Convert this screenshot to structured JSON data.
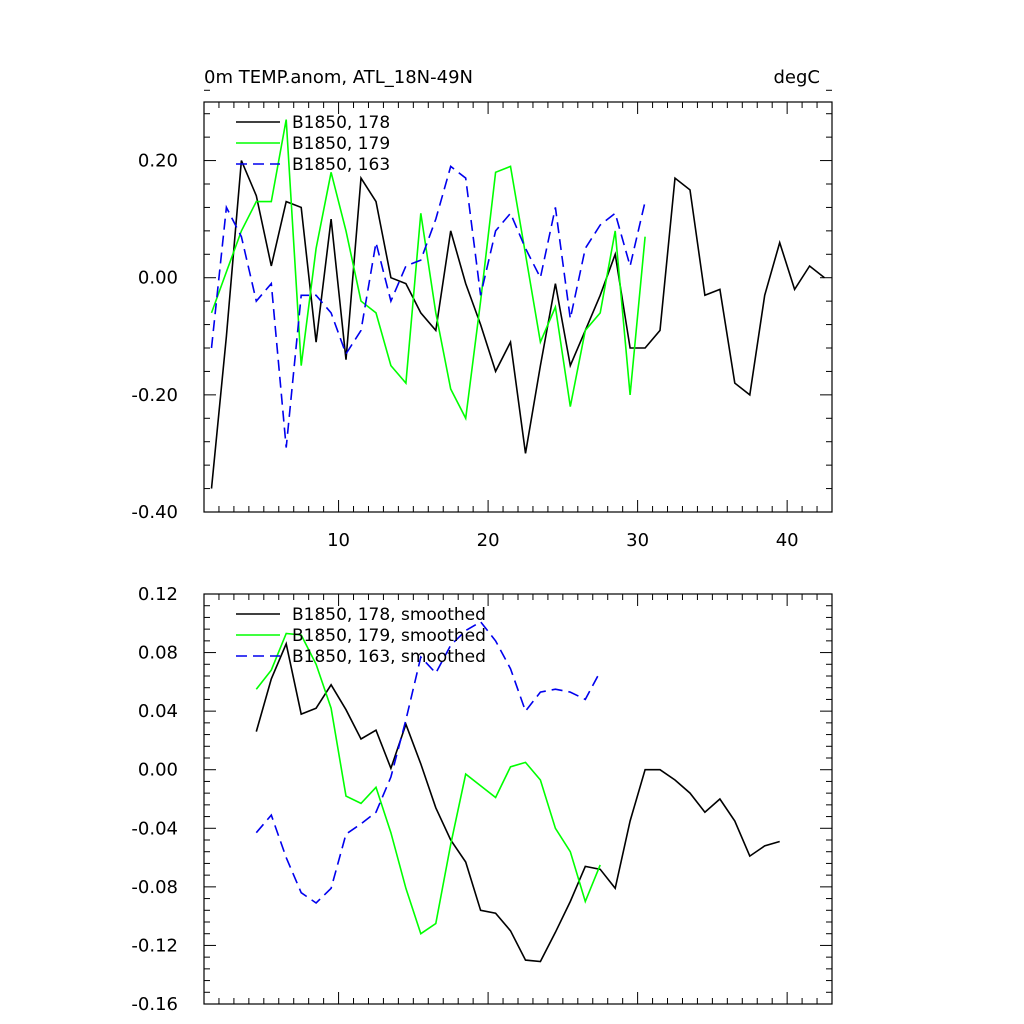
{
  "chart_data": [
    {
      "type": "line",
      "title": "0m TEMP.anom, ATL_18N-49N",
      "title_right": "degC",
      "xlabel": "",
      "ylabel": "",
      "xlim": [
        1,
        43
      ],
      "ylim": [
        -0.4,
        0.3
      ],
      "xticks": [
        10,
        20,
        30,
        40
      ],
      "xtick_labels": [
        "10",
        "20",
        "30",
        "40"
      ],
      "yticks": [
        -0.4,
        -0.2,
        0.0,
        0.2
      ],
      "ytick_labels": [
        "-0.40",
        "-0.20",
        "0.00",
        "0.20"
      ],
      "grid": false,
      "legend_placement": "top-left",
      "series": [
        {
          "name": "B1850, 178",
          "color": "#000000",
          "dash": "solid",
          "x": [
            1.5,
            2.5,
            3.5,
            4.5,
            5.5,
            6.5,
            7.5,
            8.5,
            9.5,
            10.5,
            11.5,
            12.5,
            13.5,
            14.5,
            15.5,
            16.5,
            17.5,
            18.5,
            19.5,
            20.5,
            21.5,
            22.5,
            23.5,
            24.5,
            25.5,
            26.5,
            27.5,
            28.5,
            29.5,
            30.5,
            31.5,
            32.5,
            33.5,
            34.5,
            35.5,
            36.5,
            37.5,
            38.5,
            39.5,
            40.5,
            41.5,
            42.5
          ],
          "values": [
            -0.36,
            -0.1,
            0.2,
            0.14,
            0.02,
            0.13,
            0.12,
            -0.11,
            0.1,
            -0.14,
            0.17,
            0.13,
            0.0,
            -0.01,
            -0.06,
            -0.09,
            0.08,
            -0.01,
            -0.08,
            -0.16,
            -0.11,
            -0.3,
            -0.15,
            -0.01,
            -0.15,
            -0.09,
            -0.03,
            0.04,
            -0.12,
            -0.12,
            -0.09,
            0.17,
            0.15,
            -0.03,
            -0.02,
            -0.18,
            -0.2,
            -0.03,
            0.06,
            -0.02,
            0.02,
            0.0
          ]
        },
        {
          "name": "B1850, 179",
          "color": "#00ff00",
          "dash": "solid",
          "x": [
            1.5,
            2.5,
            3.5,
            4.5,
            5.5,
            6.5,
            7.5,
            8.5,
            9.5,
            10.5,
            11.5,
            12.5,
            13.5,
            14.5,
            15.5,
            16.5,
            17.5,
            18.5,
            19.5,
            20.5,
            21.5,
            22.5,
            23.5,
            24.5,
            25.5,
            26.5,
            27.5,
            28.5,
            29.5,
            30.5
          ],
          "values": [
            -0.06,
            0.01,
            0.08,
            0.13,
            0.13,
            0.27,
            -0.15,
            0.05,
            0.18,
            0.08,
            -0.04,
            -0.06,
            -0.15,
            -0.18,
            0.11,
            -0.06,
            -0.19,
            -0.24,
            -0.04,
            0.18,
            0.19,
            0.04,
            -0.11,
            -0.05,
            -0.22,
            -0.09,
            -0.06,
            0.08,
            -0.2,
            0.07
          ]
        },
        {
          "name": "B1850, 163",
          "color": "#0000ee",
          "dash": "dashed",
          "x": [
            1.5,
            2.5,
            3.5,
            4.5,
            5.5,
            6.5,
            7.5,
            8.5,
            9.5,
            10.5,
            11.5,
            12.5,
            13.5,
            14.5,
            15.5,
            16.5,
            17.5,
            18.5,
            19.5,
            20.5,
            21.5,
            22.5,
            23.5,
            24.5,
            25.5,
            26.5,
            27.5,
            28.5,
            29.5,
            30.5
          ],
          "values": [
            -0.12,
            0.12,
            0.07,
            -0.04,
            -0.01,
            -0.29,
            -0.03,
            -0.03,
            -0.06,
            -0.13,
            -0.09,
            0.06,
            -0.04,
            0.02,
            0.03,
            0.1,
            0.19,
            0.17,
            -0.03,
            0.08,
            0.11,
            0.05,
            0.0,
            0.12,
            -0.07,
            0.05,
            0.09,
            0.11,
            0.02,
            0.13
          ]
        }
      ]
    },
    {
      "type": "line",
      "title": "",
      "xlabel": "",
      "ylabel": "",
      "xlim": [
        1,
        43
      ],
      "ylim": [
        -0.16,
        0.12
      ],
      "xticks": [
        10,
        20,
        30,
        40
      ],
      "xtick_labels": [],
      "yticks": [
        -0.16,
        -0.12,
        -0.08,
        -0.04,
        0.0,
        0.04,
        0.08,
        0.12
      ],
      "ytick_labels": [
        "-0.16",
        "-0.12",
        "-0.08",
        "-0.04",
        "0.00",
        "0.04",
        "0.08",
        "0.12"
      ],
      "grid": false,
      "legend_placement": "top-left",
      "series": [
        {
          "name": "B1850, 178, smoothed",
          "color": "#000000",
          "dash": "solid",
          "x": [
            4.5,
            5.5,
            6.5,
            7.5,
            8.5,
            9.5,
            10.5,
            11.5,
            12.5,
            13.5,
            14.5,
            15.5,
            16.5,
            17.5,
            18.5,
            19.5,
            20.5,
            21.5,
            22.5,
            23.5,
            24.5,
            25.5,
            26.5,
            27.5,
            28.5,
            29.5,
            30.5,
            31.5,
            32.5,
            33.5,
            34.5,
            35.5,
            36.5,
            37.5,
            38.5,
            39.5
          ],
          "values": [
            0.026,
            0.062,
            0.086,
            0.038,
            0.042,
            0.058,
            0.041,
            0.021,
            0.027,
            0.001,
            0.031,
            0.004,
            -0.026,
            -0.048,
            -0.063,
            -0.096,
            -0.098,
            -0.11,
            -0.13,
            -0.131,
            -0.111,
            -0.09,
            -0.066,
            -0.068,
            -0.081,
            -0.035,
            0.0,
            0.0,
            -0.007,
            -0.016,
            -0.029,
            -0.02,
            -0.035,
            -0.059,
            -0.052,
            -0.049
          ]
        },
        {
          "name": "B1850, 179, smoothed",
          "color": "#00ff00",
          "dash": "solid",
          "x": [
            4.5,
            5.5,
            6.5,
            7.5,
            8.5,
            9.5,
            10.5,
            11.5,
            12.5,
            13.5,
            14.5,
            15.5,
            16.5,
            17.5,
            18.5,
            19.5,
            20.5,
            21.5,
            22.5,
            23.5,
            24.5,
            25.5,
            26.5,
            27.5
          ],
          "values": [
            0.055,
            0.068,
            0.093,
            0.092,
            0.072,
            0.042,
            -0.018,
            -0.023,
            -0.012,
            -0.043,
            -0.081,
            -0.112,
            -0.105,
            -0.051,
            -0.003,
            -0.011,
            -0.019,
            0.002,
            0.005,
            -0.007,
            -0.04,
            -0.056,
            -0.09,
            -0.065
          ]
        },
        {
          "name": "B1850, 163, smoothed",
          "color": "#0000ee",
          "dash": "dashed",
          "x": [
            4.5,
            5.5,
            6.5,
            7.5,
            8.5,
            9.5,
            10.5,
            11.5,
            12.5,
            13.5,
            14.5,
            15.5,
            16.5,
            17.5,
            18.5,
            19.5,
            20.5,
            21.5,
            22.5,
            23.5,
            24.5,
            25.5,
            26.5,
            27.5
          ],
          "values": [
            -0.043,
            -0.031,
            -0.06,
            -0.084,
            -0.091,
            -0.081,
            -0.044,
            -0.037,
            -0.029,
            -0.005,
            0.034,
            0.077,
            0.066,
            0.085,
            0.095,
            0.101,
            0.088,
            0.069,
            0.04,
            0.053,
            0.055,
            0.053,
            0.048,
            0.067
          ]
        }
      ]
    }
  ]
}
